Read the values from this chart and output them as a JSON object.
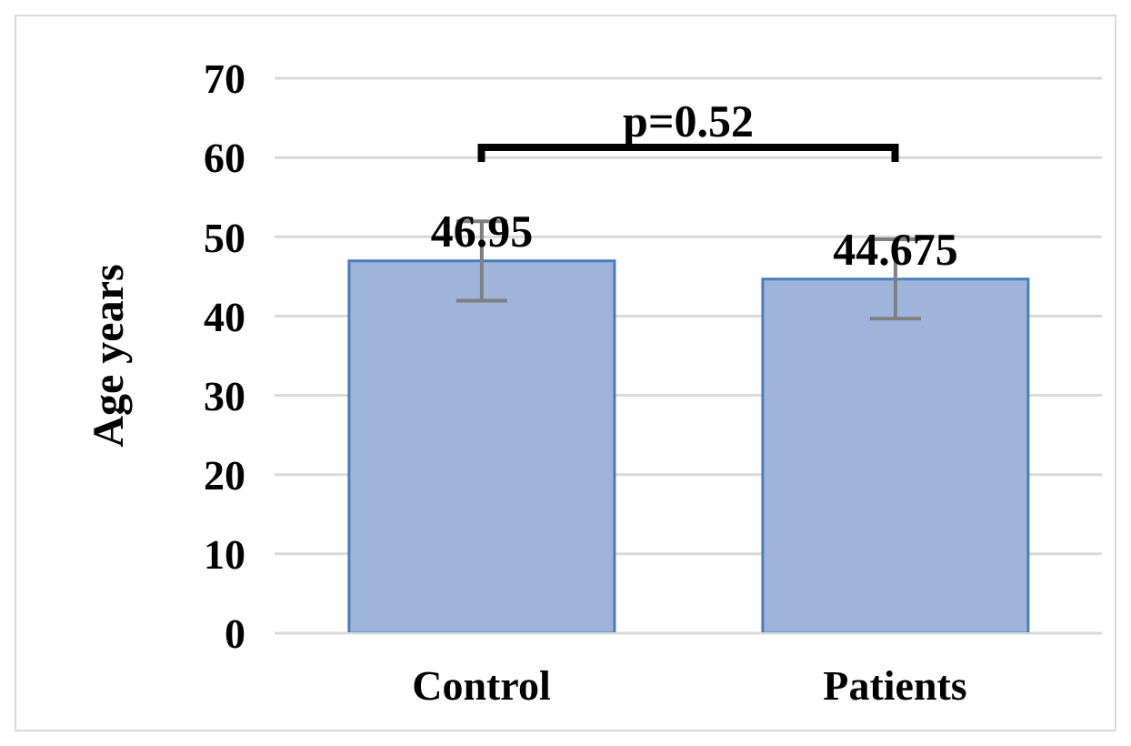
{
  "chart_data": {
    "type": "bar",
    "ylabel": "Age years",
    "categories": [
      "Control",
      "Patients"
    ],
    "values": [
      46.95,
      44.675
    ],
    "errors": [
      5,
      5
    ],
    "color": "#9fb4da",
    "ylim": [
      0,
      70
    ],
    "yticks": [
      0,
      10,
      20,
      30,
      40,
      50,
      60,
      70
    ],
    "grid": "y",
    "data_labels": true,
    "annotations": [
      "p=0.52"
    ]
  }
}
